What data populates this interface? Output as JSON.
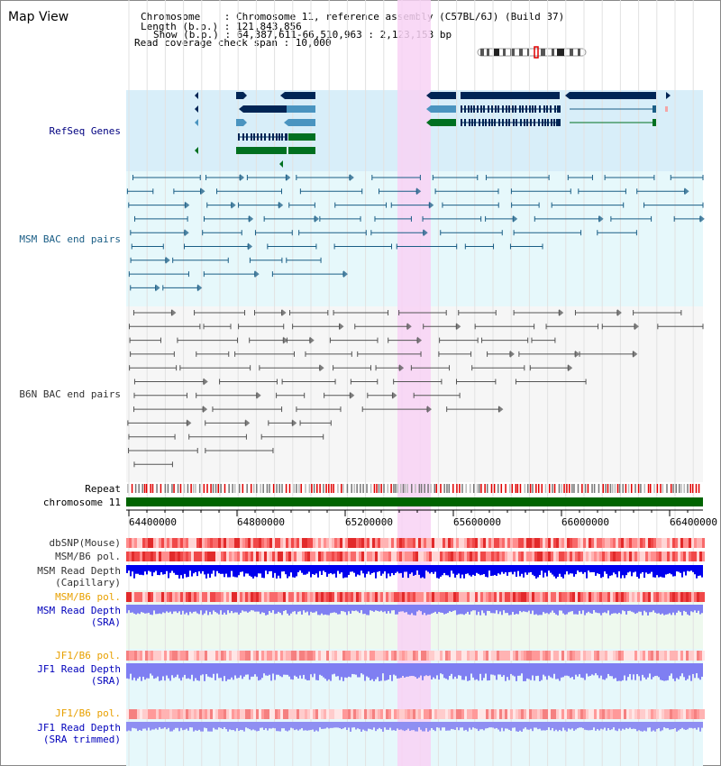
{
  "title": "Map View",
  "header": {
    "chromosome_line": "Chromosome    : Chromosome 11, reference assembly (C57BL/6J) (Build 37)",
    "length_line": "Length (b.p.) : 121,843,856",
    "show_line": "Show (b.p.) : 64,387,611-66,510,963 : 2,123,153 bp",
    "coverage_line": "Read coverage check span : 10,000"
  },
  "tracks": {
    "refseq": {
      "label": "RefSeq Genes",
      "color": "#000080",
      "bg": "#d8eef9"
    },
    "msm_bac": {
      "label": "MSM BAC end pairs",
      "color": "#1b5e86",
      "bg": "#e6f8fb"
    },
    "b6n_bac": {
      "label": "B6N BAC end pairs",
      "color": "#333333",
      "bg": "#f6f6f6"
    },
    "repeat": {
      "label": "Repeat"
    },
    "chromosome": {
      "label": "chromosome 11",
      "color": "#006400"
    },
    "dbsnp": {
      "label": "dbSNP(Mouse)"
    },
    "msm_b6_pol_1": {
      "label": "MSM/B6 pol."
    },
    "msm_depth_cap": {
      "label1": "MSM Read Depth",
      "label2": "(Capillary)"
    },
    "msm_b6_pol_2": {
      "label": "MSM/B6 pol."
    },
    "msm_depth_sra": {
      "label1": "MSM Read Depth",
      "label2": "(SRA)"
    },
    "jf1_b6_pol_1": {
      "label": "JF1/B6 pol."
    },
    "jf1_depth_sra": {
      "label1": "JF1 Read Depth",
      "label2": "(SRA)"
    },
    "jf1_b6_pol_2": {
      "label": "JF1/B6 pol."
    },
    "jf1_depth_trim": {
      "label1": "JF1 Read Depth",
      "label2": "(SRA trimmed)"
    }
  },
  "axis": {
    "ticks": [
      "64400000",
      "64800000",
      "65200000",
      "65600000",
      "66000000",
      "66400000"
    ]
  },
  "colors": {
    "highlight": "#f8d2f4",
    "dark_navy": "#002555",
    "mid_blue": "#4a94c0",
    "green": "#007020",
    "depth_dark": "#0000ee",
    "depth_light": "#7f7ff2",
    "snp_red": "#f04848",
    "orange_label": "#e8a000",
    "blue_label": "#0000bb"
  }
}
